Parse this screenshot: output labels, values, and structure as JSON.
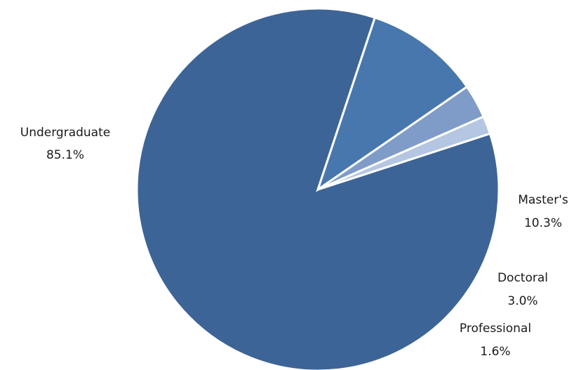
{
  "chart_data": {
    "type": "pie",
    "slices": [
      {
        "label": "Undergraduate",
        "value": 85.1,
        "value_label": "85.1%",
        "color": "#3d6496"
      },
      {
        "label": "Master's",
        "value": 10.3,
        "value_label": "10.3%",
        "color": "#4877ad"
      },
      {
        "label": "Doctoral",
        "value": 3.0,
        "value_label": "3.0%",
        "color": "#7f9cc8"
      },
      {
        "label": "Professional",
        "value": 1.6,
        "value_label": "1.6%",
        "color": "#b4c6e1"
      }
    ],
    "start_angle_deg": 72,
    "direction": "clockwise",
    "legend": false
  }
}
